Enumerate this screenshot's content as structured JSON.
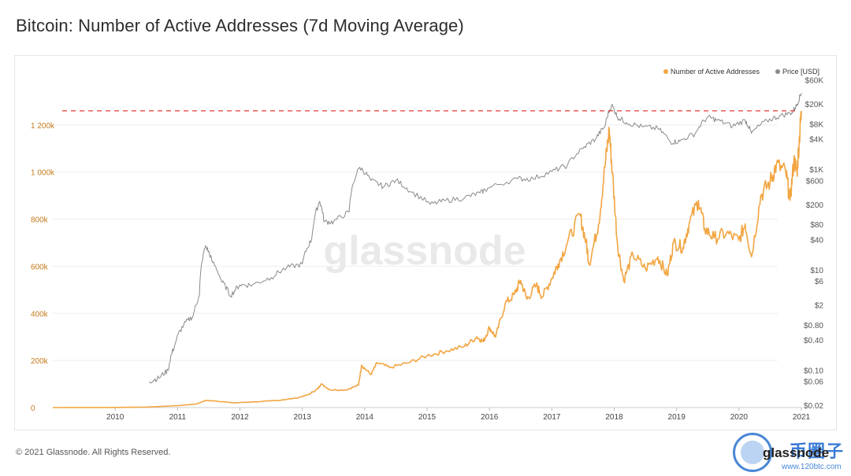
{
  "title": "Bitcoin: Number of Active Addresses (7d Moving Average)",
  "footer": "© 2021 Glassnode. All Rights Reserved.",
  "watermark": "glassnode",
  "site_logo": {
    "cn": "币圈子",
    "url": "www.120btc.com",
    "small": "glassnode"
  },
  "colors": {
    "addresses": "#f2a541",
    "price": "#8a8a8a",
    "highlight": "#e53935",
    "gridline": "#eeeeee",
    "axis_text_left": "#c47a1a",
    "axis_text_right": "#555555"
  },
  "chart_data": {
    "type": "line",
    "title": "Bitcoin: Number of Active Addresses (7d Moving Average)",
    "legend": {
      "position": "top-right",
      "entries": [
        "Number of Active Addresses",
        "Price [USD]"
      ]
    },
    "x": {
      "start": 2009.0,
      "end": 2021.0,
      "ticks": [
        "2010",
        "2011",
        "2012",
        "2013",
        "2014",
        "2015",
        "2016",
        "2017",
        "2018",
        "2019",
        "2020",
        "2021"
      ]
    },
    "y_left": {
      "label": "Number of Active Addresses",
      "min": 0,
      "max": 1400000,
      "ticks": [
        {
          "v": 0,
          "label": "0"
        },
        {
          "v": 200000,
          "label": "200k"
        },
        {
          "v": 400000,
          "label": "400k"
        },
        {
          "v": 600000,
          "label": "600k"
        },
        {
          "v": 800000,
          "label": "800k"
        },
        {
          "v": 1000000,
          "label": "1 000k"
        },
        {
          "v": 1200000,
          "label": "1 200k"
        }
      ]
    },
    "y_right": {
      "label": "Price [USD]",
      "scale": "log",
      "min": 0.018,
      "max": 66000,
      "ticks": [
        {
          "v": 0.02,
          "label": "$0.02"
        },
        {
          "v": 0.06,
          "label": "$0.06"
        },
        {
          "v": 0.1,
          "label": "$0.10"
        },
        {
          "v": 0.4,
          "label": "$0.40"
        },
        {
          "v": 0.8,
          "label": "$0.80"
        },
        {
          "v": 2,
          "label": "$2"
        },
        {
          "v": 6,
          "label": "$6"
        },
        {
          "v": 10,
          "label": "$10"
        },
        {
          "v": 40,
          "label": "$40"
        },
        {
          "v": 80,
          "label": "$80"
        },
        {
          "v": 200,
          "label": "$200"
        },
        {
          "v": 600,
          "label": "$600"
        },
        {
          "v": 1000,
          "label": "$1K"
        },
        {
          "v": 4000,
          "label": "$4K"
        },
        {
          "v": 8000,
          "label": "$8K"
        },
        {
          "v": 20000,
          "label": "$20K"
        },
        {
          "v": 60000,
          "label": "$60K"
        }
      ]
    },
    "reference_line": {
      "axis": "left",
      "value": 1260000,
      "style": "dashed",
      "color": "#e53935"
    },
    "series": [
      {
        "name": "Number of Active Addresses",
        "axis": "left",
        "color": "#f2a541",
        "points": [
          [
            2009.0,
            100
          ],
          [
            2010.0,
            500
          ],
          [
            2010.5,
            2000
          ],
          [
            2011.0,
            8000
          ],
          [
            2011.3,
            15000
          ],
          [
            2011.45,
            30000
          ],
          [
            2011.6,
            28000
          ],
          [
            2011.9,
            20000
          ],
          [
            2012.3,
            25000
          ],
          [
            2012.6,
            30000
          ],
          [
            2012.9,
            40000
          ],
          [
            2013.1,
            55000
          ],
          [
            2013.25,
            80000
          ],
          [
            2013.3,
            100000
          ],
          [
            2013.45,
            75000
          ],
          [
            2013.7,
            75000
          ],
          [
            2013.9,
            95000
          ],
          [
            2013.95,
            180000
          ],
          [
            2014.1,
            140000
          ],
          [
            2014.2,
            190000
          ],
          [
            2014.4,
            170000
          ],
          [
            2014.7,
            190000
          ],
          [
            2015.0,
            220000
          ],
          [
            2015.3,
            240000
          ],
          [
            2015.6,
            260000
          ],
          [
            2015.8,
            300000
          ],
          [
            2015.9,
            280000
          ],
          [
            2016.0,
            340000
          ],
          [
            2016.1,
            300000
          ],
          [
            2016.25,
            440000
          ],
          [
            2016.4,
            480000
          ],
          [
            2016.5,
            540000
          ],
          [
            2016.6,
            460000
          ],
          [
            2016.75,
            520000
          ],
          [
            2016.85,
            470000
          ],
          [
            2017.0,
            550000
          ],
          [
            2017.1,
            610000
          ],
          [
            2017.25,
            700000
          ],
          [
            2017.45,
            820000
          ],
          [
            2017.55,
            700000
          ],
          [
            2017.6,
            610000
          ],
          [
            2017.75,
            780000
          ],
          [
            2017.85,
            1020000
          ],
          [
            2017.92,
            1180000
          ],
          [
            2017.97,
            1000000
          ],
          [
            2018.05,
            700000
          ],
          [
            2018.15,
            540000
          ],
          [
            2018.3,
            650000
          ],
          [
            2018.5,
            590000
          ],
          [
            2018.7,
            640000
          ],
          [
            2018.85,
            560000
          ],
          [
            2018.95,
            700000
          ],
          [
            2019.1,
            680000
          ],
          [
            2019.2,
            780000
          ],
          [
            2019.35,
            880000
          ],
          [
            2019.45,
            760000
          ],
          [
            2019.6,
            720000
          ],
          [
            2019.8,
            740000
          ],
          [
            2020.0,
            710000
          ],
          [
            2020.1,
            780000
          ],
          [
            2020.2,
            640000
          ],
          [
            2020.35,
            900000
          ],
          [
            2020.5,
            960000
          ],
          [
            2020.6,
            1030000
          ],
          [
            2020.75,
            1000000
          ],
          [
            2020.82,
            880000
          ],
          [
            2020.88,
            1050000
          ],
          [
            2020.93,
            1000000
          ],
          [
            2020.97,
            1150000
          ],
          [
            2021.0,
            1260000
          ]
        ]
      },
      {
        "name": "Price [USD]",
        "axis": "right",
        "color": "#8a8a8a",
        "points": [
          [
            2010.55,
            0.06
          ],
          [
            2010.7,
            0.07
          ],
          [
            2010.85,
            0.1
          ],
          [
            2010.95,
            0.3
          ],
          [
            2011.1,
            0.8
          ],
          [
            2011.25,
            1.2
          ],
          [
            2011.35,
            3
          ],
          [
            2011.45,
            30
          ],
          [
            2011.55,
            15
          ],
          [
            2011.7,
            6
          ],
          [
            2011.85,
            3
          ],
          [
            2012.0,
            5
          ],
          [
            2012.2,
            5
          ],
          [
            2012.5,
            7
          ],
          [
            2012.75,
            11
          ],
          [
            2013.0,
            13
          ],
          [
            2013.15,
            40
          ],
          [
            2013.28,
            230
          ],
          [
            2013.35,
            90
          ],
          [
            2013.5,
            90
          ],
          [
            2013.75,
            140
          ],
          [
            2013.92,
            1100
          ],
          [
            2014.1,
            600
          ],
          [
            2014.3,
            450
          ],
          [
            2014.5,
            600
          ],
          [
            2014.75,
            350
          ],
          [
            2015.05,
            200
          ],
          [
            2015.3,
            240
          ],
          [
            2015.6,
            270
          ],
          [
            2015.85,
            340
          ],
          [
            2016.0,
            430
          ],
          [
            2016.45,
            650
          ],
          [
            2016.7,
            650
          ],
          [
            2017.0,
            900
          ],
          [
            2017.25,
            1200
          ],
          [
            2017.5,
            2600
          ],
          [
            2017.7,
            4000
          ],
          [
            2017.85,
            7000
          ],
          [
            2017.96,
            19000
          ],
          [
            2018.05,
            11000
          ],
          [
            2018.2,
            8500
          ],
          [
            2018.45,
            7000
          ],
          [
            2018.7,
            6500
          ],
          [
            2018.9,
            3500
          ],
          [
            2019.05,
            3600
          ],
          [
            2019.3,
            5200
          ],
          [
            2019.5,
            11000
          ],
          [
            2019.65,
            9500
          ],
          [
            2019.9,
            7200
          ],
          [
            2020.1,
            9500
          ],
          [
            2020.2,
            5200
          ],
          [
            2020.45,
            9300
          ],
          [
            2020.65,
            11500
          ],
          [
            2020.85,
            13500
          ],
          [
            2020.93,
            19000
          ],
          [
            2021.0,
            33000
          ]
        ]
      }
    ]
  }
}
